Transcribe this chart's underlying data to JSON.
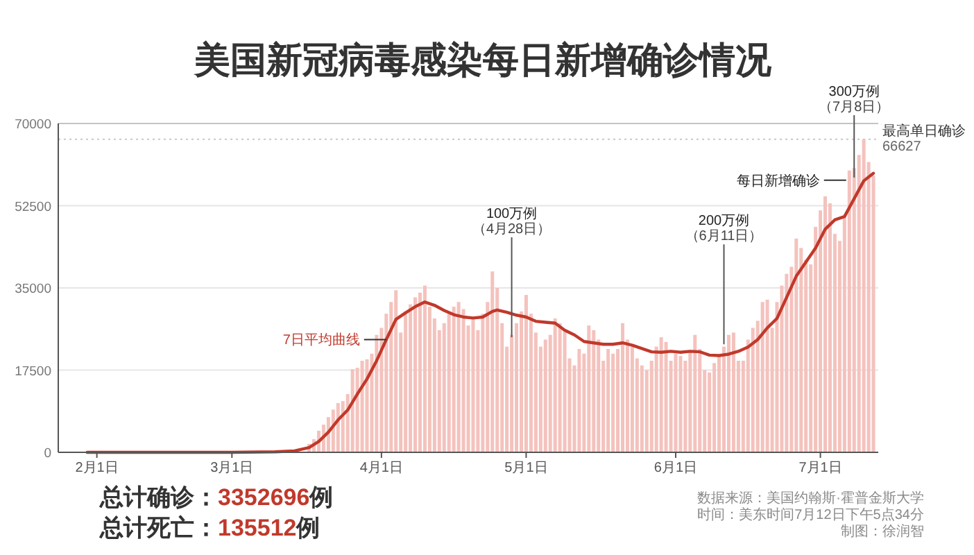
{
  "chart_data": {
    "type": "bar",
    "title": "美国新冠病毒感染每日新增确诊情况",
    "xlim": [
      "--01-24",
      "--07-13"
    ],
    "xticks": [
      {
        "value": "--02-01",
        "label": "2月1日"
      },
      {
        "value": "--03-01",
        "label": "3月1日"
      },
      {
        "value": "--04-01",
        "label": "4月1日"
      },
      {
        "value": "--05-01",
        "label": "5月1日"
      },
      {
        "value": "--06-01",
        "label": "6月1日"
      },
      {
        "value": "--07-01",
        "label": "7月1日"
      }
    ],
    "ylim": [
      0,
      70000
    ],
    "yticks": [
      0,
      17500,
      35000,
      52500,
      70000
    ],
    "grid": "y",
    "x": [
      "--03-17",
      "--03-18",
      "--03-19",
      "--03-20",
      "--03-21",
      "--03-22",
      "--03-23",
      "--03-24",
      "--03-25",
      "--03-26",
      "--03-27",
      "--03-28",
      "--03-29",
      "--03-30",
      "--03-31",
      "--04-01",
      "--04-02",
      "--04-03",
      "--04-04",
      "--04-05",
      "--04-06",
      "--04-07",
      "--04-08",
      "--04-09",
      "--04-10",
      "--04-11",
      "--04-12",
      "--04-13",
      "--04-14",
      "--04-15",
      "--04-16",
      "--04-17",
      "--04-18",
      "--04-19",
      "--04-20",
      "--04-21",
      "--04-22",
      "--04-23",
      "--04-24",
      "--04-25",
      "--04-26",
      "--04-27",
      "--04-28",
      "--04-29",
      "--04-30",
      "--05-01",
      "--05-02",
      "--05-03",
      "--05-04",
      "--05-05",
      "--05-06",
      "--05-07",
      "--05-08",
      "--05-09",
      "--05-10",
      "--05-11",
      "--05-12",
      "--05-13",
      "--05-14",
      "--05-15",
      "--05-16",
      "--05-17",
      "--05-18",
      "--05-19",
      "--05-20",
      "--05-21",
      "--05-22",
      "--05-23",
      "--05-24",
      "--05-25",
      "--05-26",
      "--05-27",
      "--05-28",
      "--05-29",
      "--05-30",
      "--05-31",
      "--06-01",
      "--06-02",
      "--06-03",
      "--06-04",
      "--06-05",
      "--06-06",
      "--06-07",
      "--06-08",
      "--06-09",
      "--06-10",
      "--06-11",
      "--06-12",
      "--06-13",
      "--06-14",
      "--06-15",
      "--06-16",
      "--06-17",
      "--06-18",
      "--06-19",
      "--06-20",
      "--06-21",
      "--06-22",
      "--06-23",
      "--06-24",
      "--06-25",
      "--06-26",
      "--06-27",
      "--06-28",
      "--06-29",
      "--06-30",
      "--07-01",
      "--07-02",
      "--07-03",
      "--07-04",
      "--07-05",
      "--07-06",
      "--07-07",
      "--07-08",
      "--07-09",
      "--07-10",
      "--07-11",
      "--07-12"
    ],
    "series": [
      {
        "name": "每日新增确诊",
        "color": "#f4c2bd",
        "values": [
          1800,
          2800,
          4600,
          5900,
          7500,
          9100,
          10500,
          10900,
          12400,
          17700,
          18000,
          19500,
          19800,
          21000,
          25000,
          26500,
          29500,
          32000,
          34500,
          25500,
          30000,
          31500,
          33000,
          34000,
          35500,
          31000,
          28500,
          26000,
          27500,
          29500,
          31000,
          32000,
          30500,
          27000,
          28500,
          26000,
          29500,
          32000,
          38500,
          35000,
          27500,
          22500,
          25000,
          27500,
          30000,
          33500,
          29500,
          25500,
          22500,
          24000,
          25000,
          28500,
          27500,
          26000,
          20000,
          18500,
          22000,
          21000,
          27000,
          26000,
          24000,
          19500,
          22000,
          21000,
          22000,
          27500,
          24000,
          22500,
          20000,
          18500,
          17500,
          19500,
          22500,
          24500,
          23500,
          19500,
          21000,
          20500,
          19500,
          21500,
          25000,
          22000,
          17500,
          17000,
          19000,
          20500,
          22500,
          25000,
          25500,
          19500,
          19500,
          24000,
          26500,
          28000,
          32000,
          32500,
          26500,
          32000,
          35500,
          38000,
          39500,
          45500,
          43500,
          41000,
          40000,
          48000,
          51500,
          54500,
          53000,
          46500,
          45000,
          50000,
          60000,
          60500,
          63300,
          66627,
          61800,
          58900
        ]
      },
      {
        "name": "7日平均曲线",
        "type": "line",
        "color": "#c0392b",
        "x": [
          "--01-30",
          "--02-15",
          "--03-01",
          "--03-10",
          "--03-14",
          "--03-17",
          "--03-19",
          "--03-21",
          "--03-23",
          "--03-25",
          "--03-27",
          "--03-29",
          "--03-31",
          "--04-02",
          "--04-04",
          "--04-06",
          "--04-08",
          "--04-10",
          "--04-12",
          "--04-14",
          "--04-16",
          "--04-18",
          "--04-20",
          "--04-22",
          "--04-24",
          "--04-25",
          "--04-27",
          "--04-29",
          "--05-01",
          "--05-03",
          "--05-05",
          "--05-07",
          "--05-09",
          "--05-11",
          "--05-13",
          "--05-15",
          "--05-17",
          "--05-19",
          "--05-21",
          "--05-23",
          "--05-25",
          "--05-27",
          "--05-29",
          "--05-31",
          "--06-02",
          "--06-04",
          "--06-06",
          "--06-08",
          "--06-10",
          "--06-12",
          "--06-14",
          "--06-16",
          "--06-18",
          "--06-20",
          "--06-22",
          "--06-24",
          "--06-26",
          "--06-28",
          "--06-30",
          "--07-02",
          "--07-04",
          "--07-06",
          "--07-08",
          "--07-10",
          "--07-12"
        ],
        "values": [
          0,
          0,
          0,
          100,
          300,
          1000,
          2300,
          4300,
          6900,
          9000,
          12400,
          15600,
          19500,
          24000,
          28300,
          29700,
          31000,
          32000,
          31300,
          30200,
          29300,
          28800,
          28600,
          28800,
          30000,
          30300,
          29800,
          29200,
          28800,
          27900,
          27700,
          27500,
          26000,
          25000,
          23600,
          23300,
          23000,
          23000,
          23300,
          22800,
          22100,
          21400,
          21300,
          21500,
          21300,
          21500,
          21400,
          20700,
          20600,
          20900,
          21500,
          22400,
          24000,
          26500,
          28500,
          33000,
          37500,
          40500,
          43500,
          47500,
          49500,
          50200,
          54000,
          57800,
          59400
        ]
      }
    ],
    "ref_lines": [
      {
        "axis": "y",
        "value": 66627,
        "label": "最高单日确诊\n66627",
        "line_style": "dotted",
        "color": "#c8c8c8"
      }
    ],
    "annotations": [
      {
        "text": "100万例（4月28日）",
        "x": "--04-28",
        "y": 24500
      },
      {
        "text": "200万例（6月11日）",
        "x": "--06-11",
        "y": 23000
      },
      {
        "text": "300万例（7月8日）",
        "x": "--07-08",
        "y": 58500
      },
      "总计确诊：3352696例",
      "总计死亡：135512例",
      "数据来源：美国约翰斯·霍普金斯大学",
      "时间：美东时间7月12日下午5点34分",
      "制图：徐润智"
    ]
  }
}
